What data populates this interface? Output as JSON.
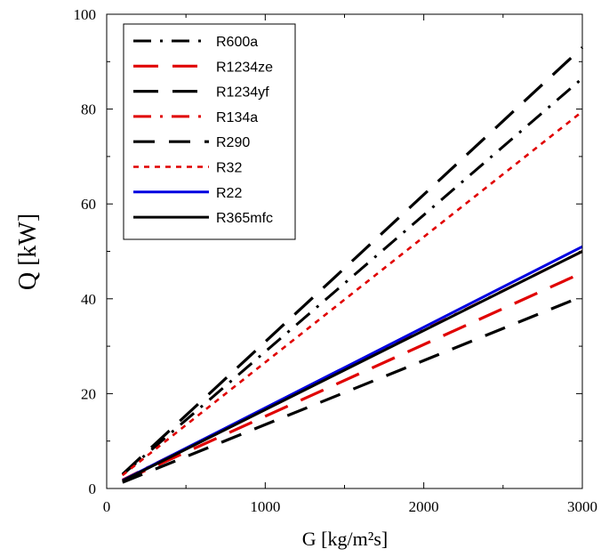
{
  "chart_data": {
    "type": "line",
    "xlabel": "G [kg/m²s]",
    "ylabel": "Q [kW]",
    "xlim": [
      0,
      3000
    ],
    "ylim": [
      0,
      100
    ],
    "xticks": [
      0,
      1000,
      2000,
      3000
    ],
    "yticks": [
      0,
      20,
      40,
      60,
      80,
      100
    ],
    "x_minor_step": 500,
    "y_minor_step": 10,
    "grid": false,
    "legend_position": "top-left",
    "x": [
      100,
      3000
    ],
    "series": [
      {
        "name": "R600a",
        "color": "#000000",
        "dash": "dashdot",
        "values": [
          2.9,
          86.5
        ]
      },
      {
        "name": "R1234ze",
        "color": "#e00000",
        "dash": "longdash",
        "values": [
          1.6,
          45.5
        ]
      },
      {
        "name": "R1234yf",
        "color": "#000000",
        "dash": "longdash",
        "values": [
          3.0,
          93.0
        ]
      },
      {
        "name": "R134a",
        "color": "#e00000",
        "dash": "dashdot",
        "values": [
          1.8,
          50.0
        ]
      },
      {
        "name": "R290",
        "color": "#000000",
        "dash": "dash",
        "values": [
          1.3,
          40.5
        ]
      },
      {
        "name": "R32",
        "color": "#e00000",
        "dash": "dot",
        "values": [
          2.8,
          79.5
        ]
      },
      {
        "name": "R22",
        "color": "#0000e0",
        "dash": "solid",
        "values": [
          1.7,
          51.0
        ]
      },
      {
        "name": "R365mfc",
        "color": "#000000",
        "dash": "solid",
        "values": [
          1.6,
          50.0
        ]
      }
    ]
  }
}
